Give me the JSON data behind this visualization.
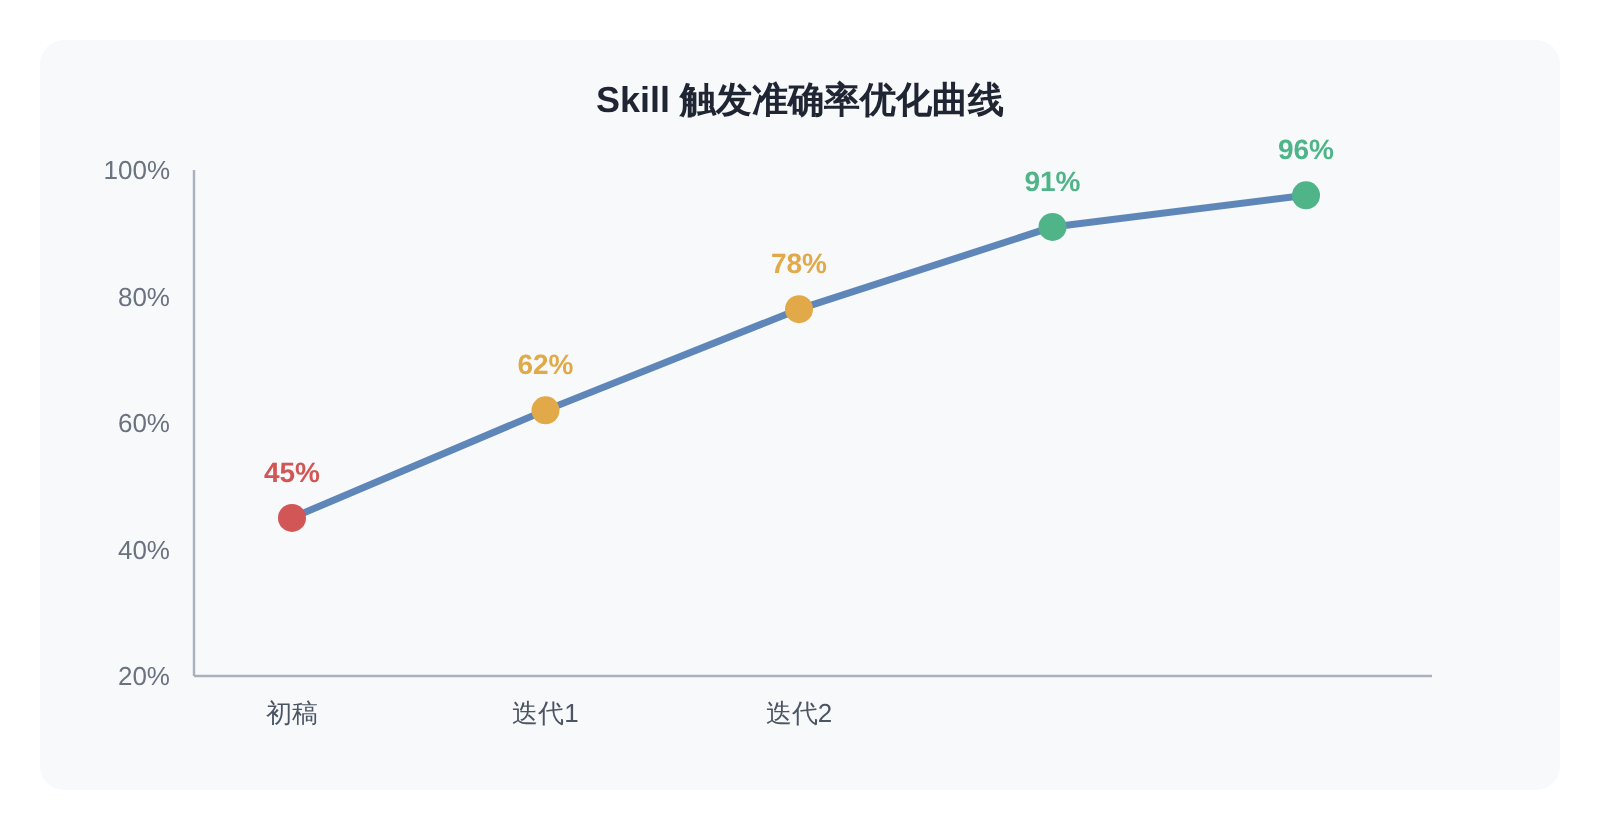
{
  "chart_data": {
    "type": "line",
    "title": "Skill 触发准确率优化曲线",
    "categories": [
      "初稿",
      "迭代1",
      "迭代2",
      null,
      null
    ],
    "series": [
      {
        "color": "#5f86b8",
        "colors": [
          "#d25656",
          "#e2a948",
          "#e2a948",
          "#4fb487",
          "#4fb487"
        ],
        "values": [
          45,
          62,
          78,
          91,
          96
        ],
        "value_labels": [
          "45%",
          "62%",
          "78%",
          "91%",
          "96%"
        ]
      }
    ],
    "ylim": [
      20,
      100
    ],
    "yticks": [
      {
        "value": 20,
        "label": "20%"
      },
      {
        "value": 40,
        "label": "40%"
      },
      {
        "value": 60,
        "label": "60%"
      },
      {
        "value": 80,
        "label": "80%"
      },
      {
        "value": 100,
        "label": "100%"
      }
    ],
    "marker": "circle",
    "line_style": "solid",
    "grid": false
  }
}
